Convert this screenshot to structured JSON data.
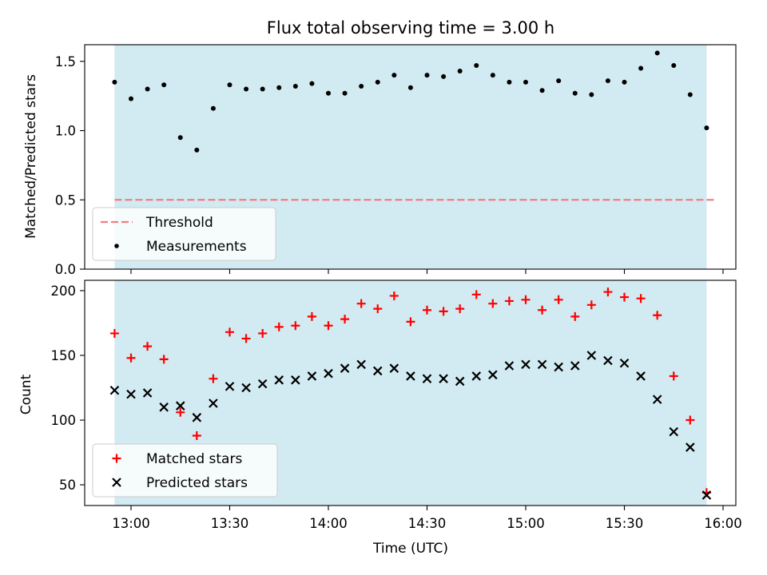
{
  "chart_data": {
    "title": "Flux total observing time = 3.00 h",
    "xlabel": "Time (UTC)",
    "x_ticks": [
      "13:00",
      "13:30",
      "14:00",
      "14:30",
      "15:00",
      "15:30",
      "16:00"
    ],
    "colors": {
      "shade": "#add8e6",
      "threshold": "#f08080",
      "measurement": "#000000",
      "matched": "#ff0000",
      "predicted": "#000000"
    },
    "shaded_span": [
      "12:55",
      "15:55"
    ],
    "panels": [
      {
        "type": "scatter",
        "ylabel": "Matched/Predicted stars",
        "ylim": [
          0,
          1.62
        ],
        "yticks": [
          "0.0",
          "0.5",
          "1.0",
          "1.5"
        ],
        "legend_position": "lower-left",
        "threshold": {
          "name": "Threshold",
          "value": 0.5
        },
        "series": [
          {
            "name": "Measurements",
            "marker": "dot",
            "points": [
              [
                "12:55",
                1.35
              ],
              [
                "13:00",
                1.23
              ],
              [
                "13:05",
                1.3
              ],
              [
                "13:10",
                1.33
              ],
              [
                "13:15",
                0.95
              ],
              [
                "13:20",
                0.86
              ],
              [
                "13:25",
                1.16
              ],
              [
                "13:30",
                1.33
              ],
              [
                "13:35",
                1.3
              ],
              [
                "13:40",
                1.3
              ],
              [
                "13:45",
                1.31
              ],
              [
                "13:50",
                1.32
              ],
              [
                "13:55",
                1.34
              ],
              [
                "14:00",
                1.27
              ],
              [
                "14:05",
                1.27
              ],
              [
                "14:10",
                1.32
              ],
              [
                "14:15",
                1.35
              ],
              [
                "14:20",
                1.4
              ],
              [
                "14:25",
                1.31
              ],
              [
                "14:30",
                1.4
              ],
              [
                "14:35",
                1.39
              ],
              [
                "14:40",
                1.43
              ],
              [
                "14:45",
                1.47
              ],
              [
                "14:50",
                1.4
              ],
              [
                "14:55",
                1.35
              ],
              [
                "15:00",
                1.35
              ],
              [
                "15:05",
                1.29
              ],
              [
                "15:10",
                1.36
              ],
              [
                "15:15",
                1.27
              ],
              [
                "15:20",
                1.26
              ],
              [
                "15:25",
                1.36
              ],
              [
                "15:30",
                1.35
              ],
              [
                "15:35",
                1.45
              ],
              [
                "15:40",
                1.56
              ],
              [
                "15:45",
                1.47
              ],
              [
                "15:50",
                1.26
              ],
              [
                "15:55",
                1.02
              ]
            ]
          }
        ]
      },
      {
        "type": "scatter",
        "ylabel": "Count",
        "ylim": [
          34,
          208
        ],
        "yticks": [
          "50",
          "100",
          "150",
          "200"
        ],
        "legend_position": "lower-left",
        "series": [
          {
            "name": "Matched stars",
            "marker": "plus",
            "points": [
              [
                "12:55",
                167
              ],
              [
                "13:00",
                148
              ],
              [
                "13:05",
                157
              ],
              [
                "13:10",
                147
              ],
              [
                "13:15",
                106
              ],
              [
                "13:20",
                88
              ],
              [
                "13:25",
                132
              ],
              [
                "13:30",
                168
              ],
              [
                "13:35",
                163
              ],
              [
                "13:40",
                167
              ],
              [
                "13:45",
                172
              ],
              [
                "13:50",
                173
              ],
              [
                "13:55",
                180
              ],
              [
                "14:00",
                173
              ],
              [
                "14:05",
                178
              ],
              [
                "14:10",
                190
              ],
              [
                "14:15",
                186
              ],
              [
                "14:20",
                196
              ],
              [
                "14:25",
                176
              ],
              [
                "14:30",
                185
              ],
              [
                "14:35",
                184
              ],
              [
                "14:40",
                186
              ],
              [
                "14:45",
                197
              ],
              [
                "14:50",
                190
              ],
              [
                "14:55",
                192
              ],
              [
                "15:00",
                193
              ],
              [
                "15:05",
                185
              ],
              [
                "15:10",
                193
              ],
              [
                "15:15",
                180
              ],
              [
                "15:20",
                189
              ],
              [
                "15:25",
                199
              ],
              [
                "15:30",
                195
              ],
              [
                "15:35",
                194
              ],
              [
                "15:40",
                181
              ],
              [
                "15:45",
                134
              ],
              [
                "15:50",
                100
              ],
              [
                "15:55",
                44
              ]
            ]
          },
          {
            "name": "Predicted stars",
            "marker": "x",
            "points": [
              [
                "12:55",
                123
              ],
              [
                "13:00",
                120
              ],
              [
                "13:05",
                121
              ],
              [
                "13:10",
                110
              ],
              [
                "13:15",
                111
              ],
              [
                "13:20",
                102
              ],
              [
                "13:25",
                113
              ],
              [
                "13:30",
                126
              ],
              [
                "13:35",
                125
              ],
              [
                "13:40",
                128
              ],
              [
                "13:45",
                131
              ],
              [
                "13:50",
                131
              ],
              [
                "13:55",
                134
              ],
              [
                "14:00",
                136
              ],
              [
                "14:05",
                140
              ],
              [
                "14:10",
                143
              ],
              [
                "14:15",
                138
              ],
              [
                "14:20",
                140
              ],
              [
                "14:25",
                134
              ],
              [
                "14:30",
                132
              ],
              [
                "14:35",
                132
              ],
              [
                "14:40",
                130
              ],
              [
                "14:45",
                134
              ],
              [
                "14:50",
                135
              ],
              [
                "14:55",
                142
              ],
              [
                "15:00",
                143
              ],
              [
                "15:05",
                143
              ],
              [
                "15:10",
                141
              ],
              [
                "15:15",
                142
              ],
              [
                "15:20",
                150
              ],
              [
                "15:25",
                146
              ],
              [
                "15:30",
                144
              ],
              [
                "15:35",
                134
              ],
              [
                "15:40",
                116
              ],
              [
                "15:45",
                91
              ],
              [
                "15:50",
                79
              ],
              [
                "15:55",
                42
              ]
            ]
          }
        ]
      }
    ]
  }
}
